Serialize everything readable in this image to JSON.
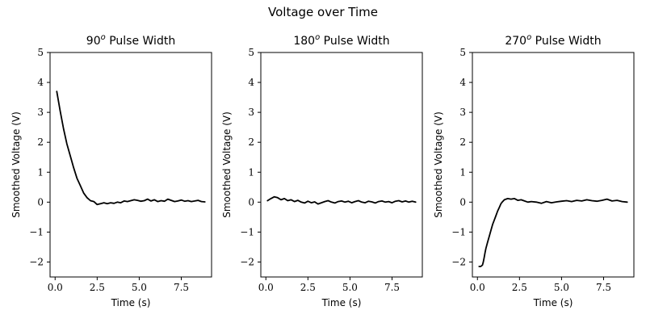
{
  "suptitle": "Voltage over Time",
  "colors": {
    "line": "#000000",
    "background": "#ffffff"
  },
  "chart_data": [
    {
      "type": "line",
      "title": "90",
      "title_superscript": "o",
      "title_suffix": " Pulse Width",
      "xlabel": "Time (s)",
      "ylabel": "Smoothed Voltage (V)",
      "xlim": [
        -0.3,
        9.3
      ],
      "ylim": [
        -2.5,
        5
      ],
      "xticks": [
        0,
        2.5,
        5,
        7.5
      ],
      "xtick_labels": [
        "0.0",
        "2.5",
        "5.0",
        "7.5"
      ],
      "yticks": [
        -2,
        -1,
        0,
        1,
        2,
        3,
        4,
        5
      ],
      "ytick_labels": [
        "−2",
        "−1",
        "0",
        "1",
        "2",
        "3",
        "4",
        "5"
      ],
      "series": [
        {
          "name": "voltage",
          "x": [
            0.1,
            0.3,
            0.5,
            0.7,
            0.9,
            1.1,
            1.3,
            1.5,
            1.7,
            1.9,
            2.1,
            2.3,
            2.5,
            2.7,
            2.9,
            3.1,
            3.3,
            3.5,
            3.7,
            3.9,
            4.1,
            4.3,
            4.5,
            4.7,
            4.9,
            5.1,
            5.3,
            5.5,
            5.7,
            5.9,
            6.1,
            6.3,
            6.5,
            6.7,
            6.9,
            7.1,
            7.3,
            7.5,
            7.7,
            7.9,
            8.1,
            8.3,
            8.5,
            8.7,
            8.9
          ],
          "y": [
            3.7,
            3.05,
            2.45,
            1.95,
            1.55,
            1.15,
            0.8,
            0.55,
            0.3,
            0.15,
            0.05,
            0.02,
            -0.08,
            -0.05,
            -0.02,
            -0.05,
            -0.02,
            -0.04,
            0.0,
            -0.02,
            0.04,
            0.02,
            0.05,
            0.08,
            0.06,
            0.03,
            0.05,
            0.1,
            0.04,
            0.08,
            0.02,
            0.05,
            0.03,
            0.1,
            0.06,
            0.02,
            0.04,
            0.07,
            0.03,
            0.05,
            0.02,
            0.04,
            0.06,
            0.02,
            0.01
          ]
        }
      ]
    },
    {
      "type": "line",
      "title": "180",
      "title_superscript": "o",
      "title_suffix": " Pulse Width",
      "xlabel": "Time (s)",
      "ylabel": "Smoothed Voltage (V)",
      "xlim": [
        -0.3,
        9.3
      ],
      "ylim": [
        -2.5,
        5
      ],
      "xticks": [
        0,
        2.5,
        5,
        7.5
      ],
      "xtick_labels": [
        "0.0",
        "2.5",
        "5.0",
        "7.5"
      ],
      "yticks": [
        -2,
        -1,
        0,
        1,
        2,
        3,
        4,
        5
      ],
      "ytick_labels": [
        "−2",
        "−1",
        "0",
        "1",
        "2",
        "3",
        "4",
        "5"
      ],
      "series": [
        {
          "name": "voltage",
          "x": [
            0.1,
            0.3,
            0.5,
            0.7,
            0.9,
            1.1,
            1.3,
            1.5,
            1.7,
            1.9,
            2.1,
            2.3,
            2.5,
            2.7,
            2.9,
            3.1,
            3.3,
            3.5,
            3.7,
            3.9,
            4.1,
            4.3,
            4.5,
            4.7,
            4.9,
            5.1,
            5.3,
            5.5,
            5.7,
            5.9,
            6.1,
            6.3,
            6.5,
            6.7,
            6.9,
            7.1,
            7.3,
            7.5,
            7.7,
            7.9,
            8.1,
            8.3,
            8.5,
            8.7,
            8.9
          ],
          "y": [
            0.05,
            0.12,
            0.18,
            0.15,
            0.08,
            0.12,
            0.05,
            0.08,
            0.02,
            0.06,
            0.0,
            -0.03,
            0.03,
            -0.02,
            0.01,
            -0.06,
            -0.02,
            0.02,
            0.05,
            0.0,
            -0.03,
            0.02,
            0.04,
            0.0,
            0.03,
            -0.02,
            0.02,
            0.05,
            0.0,
            -0.02,
            0.03,
            0.01,
            -0.03,
            0.02,
            0.04,
            0.0,
            0.02,
            -0.02,
            0.03,
            0.05,
            0.01,
            0.04,
            0.0,
            0.03,
            0.0
          ]
        }
      ]
    },
    {
      "type": "line",
      "title": "270",
      "title_superscript": "o",
      "title_suffix": " Pulse Width",
      "xlabel": "Time (s)",
      "ylabel": "Smoothed Voltage (V)",
      "xlim": [
        -0.3,
        9.3
      ],
      "ylim": [
        -2.5,
        5
      ],
      "xticks": [
        0,
        2.5,
        5,
        7.5
      ],
      "xtick_labels": [
        "0.0",
        "2.5",
        "5.0",
        "7.5"
      ],
      "yticks": [
        -2,
        -1,
        0,
        1,
        2,
        3,
        4,
        5
      ],
      "ytick_labels": [
        "−2",
        "−1",
        "0",
        "1",
        "2",
        "3",
        "4",
        "5"
      ],
      "series": [
        {
          "name": "voltage",
          "x": [
            0.1,
            0.2,
            0.3,
            0.35,
            0.4,
            0.45,
            0.5,
            0.6,
            0.7,
            0.8,
            0.9,
            1.0,
            1.1,
            1.2,
            1.3,
            1.4,
            1.5,
            1.6,
            1.7,
            1.8,
            2.0,
            2.2,
            2.4,
            2.6,
            2.8,
            3.0,
            3.2,
            3.5,
            3.8,
            4.1,
            4.4,
            4.7,
            5.0,
            5.3,
            5.6,
            5.9,
            6.2,
            6.5,
            6.8,
            7.1,
            7.4,
            7.7,
            8.0,
            8.3,
            8.6,
            8.9
          ],
          "y": [
            -2.15,
            -2.15,
            -2.1,
            -2.0,
            -1.85,
            -1.7,
            -1.55,
            -1.35,
            -1.15,
            -0.95,
            -0.75,
            -0.6,
            -0.45,
            -0.3,
            -0.18,
            -0.05,
            0.02,
            0.08,
            0.1,
            0.12,
            0.1,
            0.12,
            0.06,
            0.08,
            0.04,
            0.0,
            0.02,
            0.0,
            -0.04,
            0.02,
            -0.02,
            0.01,
            0.03,
            0.05,
            0.02,
            0.06,
            0.04,
            0.08,
            0.05,
            0.03,
            0.06,
            0.1,
            0.04,
            0.06,
            0.02,
            0.0
          ]
        }
      ]
    }
  ]
}
